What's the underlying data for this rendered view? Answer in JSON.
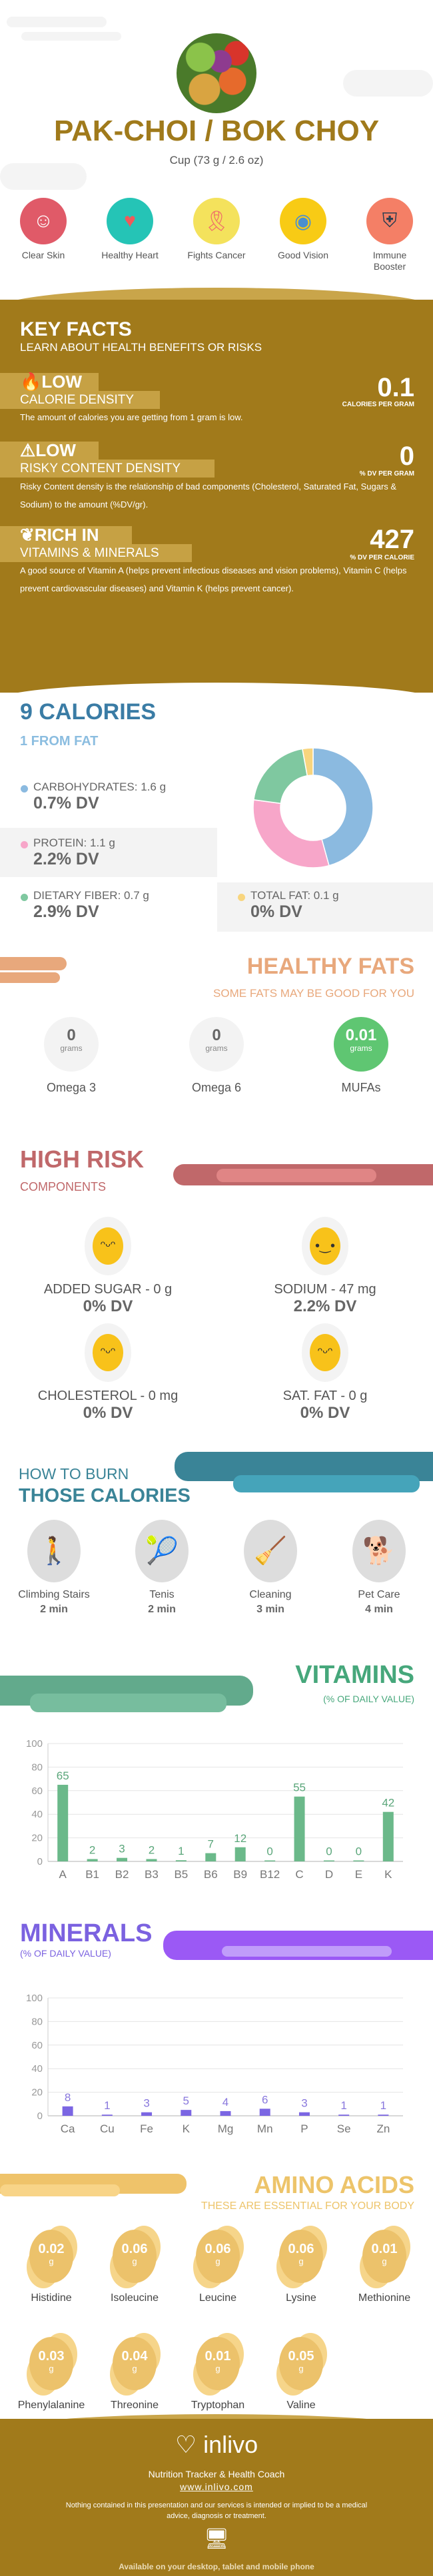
{
  "header": {
    "title": "PAK-CHOI / BOK CHOY",
    "serving": "Cup (73 g / 2.6 oz)"
  },
  "benefits": [
    {
      "label": "Clear Skin",
      "icon": "face-mask-icon",
      "color": "#e05a68"
    },
    {
      "label": "Healthy Heart",
      "icon": "heart-icon",
      "color": "#25c4b6"
    },
    {
      "label": "Fights Cancer",
      "icon": "ribbon-icon",
      "color": "#f4e25c"
    },
    {
      "label": "Good Vision",
      "icon": "eye-icon",
      "color": "#f8cb15"
    },
    {
      "label": "Immune Booster",
      "icon": "shield-icon",
      "color": "#f47f66"
    }
  ],
  "key_facts": {
    "title": "KEY FACTS",
    "subtitle": "LEARN ABOUT HEALTH BENEFITS OR RISKS",
    "facts": [
      {
        "icon": "flame-icon",
        "level": "LOW",
        "name": "CALORIE DENSITY",
        "value": "0.1",
        "unit": "CALORIES PER GRAM",
        "description": "The amount of calories you are getting from 1 gram is low."
      },
      {
        "icon": "warning-icon",
        "level": "LOW",
        "name": "RISKY CONTENT DENSITY",
        "value": "0",
        "unit": "% DV PER GRAM",
        "description": "Risky Content density is the relationship of bad components (Cholesterol, Saturated Fat, Sugars & Sodium) to the amount (%DV/gr)."
      },
      {
        "icon": "leaf-icon",
        "level": "RICH  IN",
        "name": "VITAMINS & MINERALS",
        "value": "427",
        "unit": "% DV PER CALORIE",
        "description": "A good source of Vitamin A (helps prevent infectious diseases and vision problems), Vitamin C (helps prevent cardiovascular diseases) and Vitamin K (helps prevent cancer)."
      }
    ]
  },
  "calories": {
    "title": "9 CALORIES",
    "subtitle": "1 FROM FAT",
    "macros": [
      {
        "name": "CARBOHYDRATES: 1.6 g",
        "dv": "0.7% DV",
        "color": "#8bbae0",
        "grams": 1.6
      },
      {
        "name": "PROTEIN: 1.1 g",
        "dv": "2.2% DV",
        "color": "#f7a6c9",
        "grams": 1.1
      },
      {
        "name": "DIETARY FIBER: 0.7 g",
        "dv": "2.9% DV",
        "color": "#7fc8a0",
        "grams": 0.7
      },
      {
        "name": "TOTAL FAT: 0.1 g",
        "dv": "0% DV",
        "color": "#f8d57e",
        "grams": 0.1
      }
    ]
  },
  "healthy_fats": {
    "title": "HEALTHY FATS",
    "subtitle": "SOME FATS MAY BE GOOD FOR YOU",
    "items": [
      {
        "value": "0",
        "unit": "grams",
        "name": "Omega 3"
      },
      {
        "value": "0",
        "unit": "grams",
        "name": "Omega 6"
      },
      {
        "value": "0.01",
        "unit": "grams",
        "name": "MUFAs"
      }
    ]
  },
  "high_risk": {
    "title": "HIGH RISK",
    "subtitle": "COMPONENTS",
    "items": [
      {
        "name": "ADDED SUGAR - 0 g",
        "dv": "0% DV",
        "icon": "grin-emoji-icon"
      },
      {
        "name": "SODIUM - 47 mg",
        "dv": "2.2% DV",
        "icon": "smile-emoji-icon"
      },
      {
        "name": "CHOLESTEROL - 0 mg",
        "dv": "0% DV",
        "icon": "grin-emoji-icon"
      },
      {
        "name": "SAT. FAT - 0 g",
        "dv": "0% DV",
        "icon": "grin-emoji-icon"
      }
    ]
  },
  "burn": {
    "title_line1": "HOW TO BURN",
    "title_line2": "THOSE CALORIES",
    "activities": [
      {
        "name": "Climbing Stairs",
        "time": "2 min",
        "icon": "stairs-climber-icon"
      },
      {
        "name": "Tenis",
        "time": "2 min",
        "icon": "tennis-player-icon"
      },
      {
        "name": "Cleaning",
        "time": "3 min",
        "icon": "cleaning-person-icon"
      },
      {
        "name": "Pet Care",
        "time": "4 min",
        "icon": "dog-walker-icon"
      }
    ]
  },
  "vitamins": {
    "title": "VITAMINS",
    "subtitle": "(% OF DAILY VALUE)"
  },
  "minerals": {
    "title": "MINERALS",
    "subtitle": "(% OF DAILY VALUE)"
  },
  "chart_data": [
    {
      "type": "bar",
      "categories": [
        "A",
        "B1",
        "B2",
        "B3",
        "B5",
        "B6",
        "B9",
        "B12",
        "C",
        "D",
        "E",
        "K"
      ],
      "values": [
        65,
        2,
        3,
        2,
        1,
        7,
        12,
        0,
        55,
        0,
        0,
        42
      ],
      "ylim": [
        0,
        100
      ],
      "yticks": [
        0,
        20,
        40,
        60,
        80,
        100
      ],
      "grid": true,
      "color": "#6bb98a",
      "label_color": "#5aa67a"
    },
    {
      "type": "bar",
      "categories": [
        "Ca",
        "Cu",
        "Fe",
        "K",
        "Mg",
        "Mn",
        "P",
        "Se",
        "Zn"
      ],
      "values": [
        8,
        1,
        3,
        5,
        4,
        6,
        3,
        1,
        1
      ],
      "ylim": [
        0,
        100
      ],
      "yticks": [
        0,
        20,
        40,
        60,
        80,
        100
      ],
      "grid": true,
      "color": "#7b66e3",
      "label_color": "#8877dd"
    }
  ],
  "amino": {
    "title": "AMINO ACIDS",
    "subtitle": "THESE ARE ESSENTIAL FOR YOUR BODY",
    "items": [
      {
        "value": "0.02",
        "unit": "g",
        "name": "Histidine"
      },
      {
        "value": "0.06",
        "unit": "g",
        "name": "Isoleucine"
      },
      {
        "value": "0.06",
        "unit": "g",
        "name": "Leucine"
      },
      {
        "value": "0.06",
        "unit": "g",
        "name": "Lysine"
      },
      {
        "value": "0.01",
        "unit": "g",
        "name": "Methionine"
      },
      {
        "value": "0.03",
        "unit": "g",
        "name": "Phenylalanine"
      },
      {
        "value": "0.04",
        "unit": "g",
        "name": "Threonine"
      },
      {
        "value": "0.01",
        "unit": "g",
        "name": "Tryptophan"
      },
      {
        "value": "0.05",
        "unit": "g",
        "name": "Valine"
      }
    ]
  },
  "footer": {
    "brand": "inlivo",
    "tagline": "Nutrition Tracker & Health Coach",
    "url": "www.inlivo.com",
    "disclaimer": "Nothing contained in this presentation and our services is intended or implied to be a medical advice, diagnosis or treatment.",
    "availability": "Available on your desktop, tablet and mobile phone"
  }
}
